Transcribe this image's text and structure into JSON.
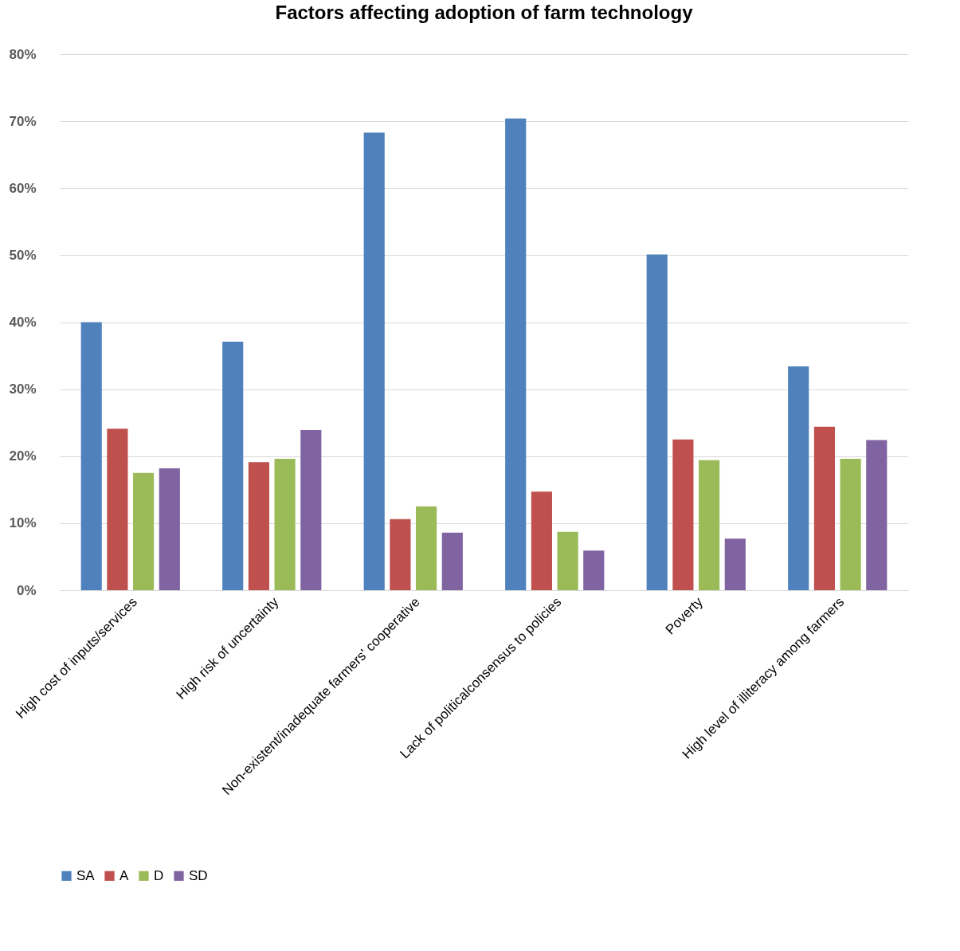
{
  "chart_data": {
    "type": "bar",
    "title": "Factors affecting adoption of farm technology",
    "categories": [
      "High cost of inputs/services",
      "High risk of uncertainty",
      "Non-existent/inadequate farmers' cooperative",
      "Lack of politicalconsensus to policies",
      "Poverty",
      "High level of illiteracy among farmers"
    ],
    "series": [
      {
        "name": "SA",
        "color": "#4f81bd",
        "values": [
          40,
          37.1,
          68.3,
          70.4,
          50.1,
          33.4
        ]
      },
      {
        "name": "A",
        "color": "#c0504d",
        "values": [
          24.1,
          19.1,
          10.6,
          14.7,
          22.5,
          24.4
        ]
      },
      {
        "name": "D",
        "color": "#9bbb59",
        "values": [
          17.5,
          19.6,
          12.5,
          8.7,
          19.4,
          19.6
        ]
      },
      {
        "name": "SD",
        "color": "#8064a2",
        "values": [
          18.2,
          23.9,
          8.6,
          5.9,
          7.7,
          22.4
        ]
      }
    ],
    "ylim": [
      0,
      80
    ],
    "yticks": [
      {
        "value": 0,
        "label": "0%"
      },
      {
        "value": 10,
        "label": "10%"
      },
      {
        "value": 20,
        "label": "20%"
      },
      {
        "value": 30,
        "label": "30%"
      },
      {
        "value": 40,
        "label": "40%"
      },
      {
        "value": 50,
        "label": "50%"
      },
      {
        "value": 60,
        "label": "60%"
      },
      {
        "value": 70,
        "label": "70%"
      },
      {
        "value": 80,
        "label": "80%"
      }
    ],
    "grid": "y",
    "legend": "bottom"
  }
}
